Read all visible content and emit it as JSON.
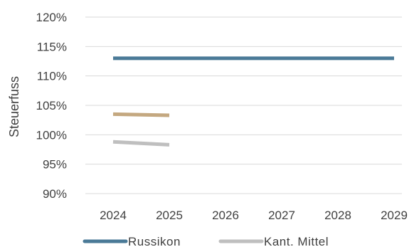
{
  "chart_data": {
    "type": "line",
    "x": [
      "2024",
      "2025",
      "2026",
      "2027",
      "2028",
      "2029"
    ],
    "yticks": [
      "90%",
      "95%",
      "100%",
      "105%",
      "110%",
      "115%",
      "120%"
    ],
    "ylim": [
      90,
      120
    ],
    "ylabel": "Steuerfuss",
    "grid": true,
    "legend_position": "bottom",
    "series": [
      {
        "name": "Russikon",
        "color": "#4a7a97",
        "values": [
          113,
          113,
          113,
          113,
          113,
          113
        ],
        "in_legend": true
      },
      {
        "name": "",
        "color": "#c4a880",
        "values": [
          103.5,
          103.3,
          null,
          null,
          null,
          null
        ],
        "in_legend": false
      },
      {
        "name": "Kant. Mittel",
        "color": "#bfbfbf",
        "values": [
          98.8,
          98.3,
          null,
          null,
          null,
          null
        ],
        "in_legend": true
      }
    ]
  }
}
